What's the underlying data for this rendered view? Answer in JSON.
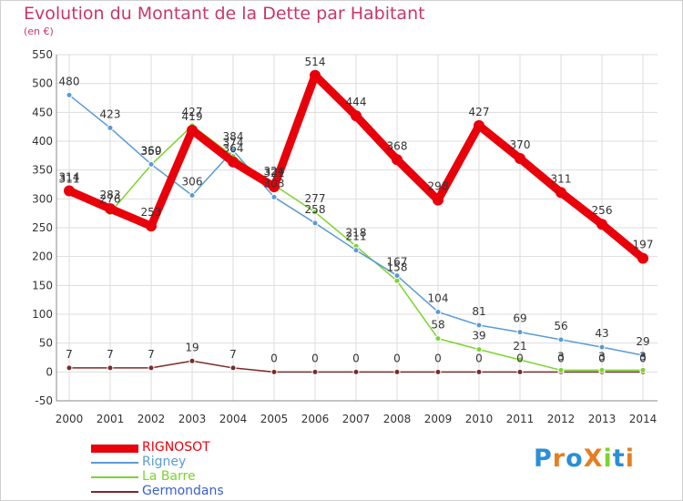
{
  "chart_data": {
    "type": "line",
    "title": "Evolution du Montant de la Dette par Habitant",
    "subtitle": "(en €)",
    "x": [
      "2000",
      "2001",
      "2002",
      "2003",
      "2004",
      "2005",
      "2006",
      "2007",
      "2008",
      "2009",
      "2010",
      "2011",
      "2012",
      "2013",
      "2014"
    ],
    "ylim": [
      -50,
      550
    ],
    "yticks": [
      -50,
      0,
      50,
      100,
      150,
      200,
      250,
      300,
      350,
      400,
      450,
      500,
      550
    ],
    "grid": true,
    "legend_position": "bottom-left",
    "series": [
      {
        "name": "RIGNOSOT",
        "color": "#e8000b",
        "values": [
          314,
          283,
          253,
          419,
          364,
          321,
          514,
          444,
          368,
          298,
          427,
          370,
          311,
          256,
          197
        ],
        "labels": [
          "314",
          "283",
          "253",
          "419",
          "364",
          "321",
          "514",
          "444",
          "368",
          "298",
          "427",
          "370",
          "311",
          "256",
          "197"
        ]
      },
      {
        "name": "Rigney",
        "color": "#5b9bd5",
        "values": [
          480,
          423,
          360,
          306,
          384,
          303,
          258,
          211,
          167,
          104,
          81,
          69,
          56,
          43,
          29
        ],
        "labels": [
          "480",
          "423",
          "360",
          "306",
          "384",
          "303",
          "258",
          "211",
          "167",
          "104",
          "81",
          "69",
          "56",
          "43",
          "29"
        ]
      },
      {
        "name": "La Barre",
        "color": "#7ed32f",
        "values": [
          311,
          276,
          359,
          427,
          374,
          324,
          277,
          218,
          158,
          58,
          39,
          21,
          3,
          3,
          3
        ],
        "labels": [
          "311",
          "276",
          "359",
          "427",
          "374",
          "324",
          "277",
          "218",
          "158",
          "58",
          "39",
          "21",
          "3",
          "3",
          "3"
        ]
      },
      {
        "name": "Germondans",
        "color": "#7b2a2a",
        "values": [
          7,
          7,
          7,
          19,
          7,
          0,
          0,
          0,
          0,
          0,
          0,
          0,
          0,
          0,
          0
        ],
        "labels": [
          "7",
          "7",
          "7",
          "19",
          "7",
          "0",
          "0",
          "0",
          "0",
          "0",
          "0",
          "0",
          "0",
          "0",
          "0"
        ]
      }
    ]
  },
  "branding": {
    "logo_text": "ProXiti",
    "letters": [
      "P",
      "r",
      "o",
      "X",
      "i",
      "t",
      "i"
    ],
    "colors": [
      "#2a8fd6",
      "#e67e22",
      "#2a8fd6",
      "#e67e22",
      "#7ed32f",
      "#2a8fd6",
      "#e67e22"
    ]
  }
}
